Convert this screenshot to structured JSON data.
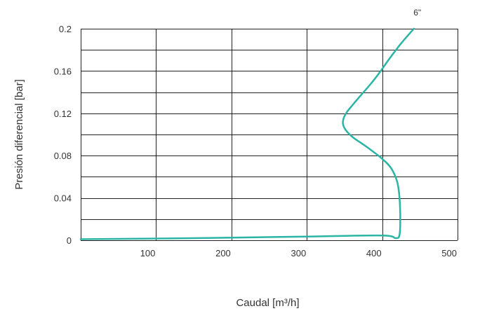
{
  "chart_data": {
    "type": "line",
    "title": "",
    "xlabel": "Caudal [m³/h]",
    "ylabel": "Presión diferencial [bar]",
    "xlim": [
      0,
      500
    ],
    "ylim": [
      0,
      0.2
    ],
    "x_ticks": [
      "100",
      "200",
      "300",
      "400",
      "500"
    ],
    "y_ticks": [
      "0",
      "0.04",
      "0.08",
      "0.12",
      "0.16",
      "0.2"
    ],
    "grid": true,
    "curve_color": "#2bb5a5",
    "series": [
      {
        "name": "6\"",
        "x": [
          0,
          150,
          300,
          400,
          418,
          423,
          424,
          423,
          420,
          412,
          400,
          380,
          360,
          350,
          348,
          353,
          368,
          385,
          398,
          410,
          425,
          442
        ],
        "y": [
          0.001,
          0.002,
          0.0035,
          0.0045,
          0.002,
          0.005,
          0.02,
          0.04,
          0.055,
          0.068,
          0.077,
          0.088,
          0.098,
          0.106,
          0.113,
          0.121,
          0.134,
          0.148,
          0.16,
          0.172,
          0.186,
          0.2
        ]
      }
    ]
  }
}
